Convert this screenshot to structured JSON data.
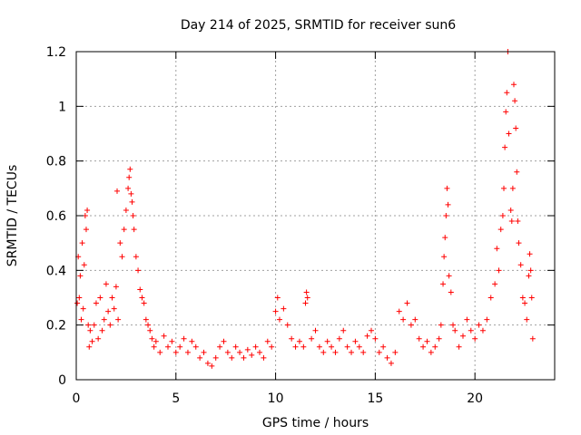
{
  "chart_data": {
    "type": "scatter",
    "title": "Day 214 of 2025, SRMTID for receiver sun6",
    "xlabel": "GPS time / hours",
    "ylabel": "SRMTID / TECUs",
    "xlim": [
      0,
      24
    ],
    "ylim": [
      0,
      1.2
    ],
    "xticks": [
      0,
      5,
      10,
      15,
      20
    ],
    "xtick_labels": [
      "0",
      "5",
      "10",
      "15",
      "20"
    ],
    "yticks": [
      0,
      0.2,
      0.4,
      0.6,
      0.8,
      1.0,
      1.2
    ],
    "ytick_labels": [
      "0",
      "0.2",
      "0.4",
      "0.6",
      "0.8",
      "1",
      "1.2"
    ],
    "grid": true,
    "marker": "+",
    "color": "#ff0000",
    "series": [
      {
        "name": "SRMTID",
        "points": [
          [
            0.05,
            0.28
          ],
          [
            0.1,
            0.45
          ],
          [
            0.15,
            0.3
          ],
          [
            0.2,
            0.38
          ],
          [
            0.25,
            0.22
          ],
          [
            0.3,
            0.5
          ],
          [
            0.35,
            0.26
          ],
          [
            0.4,
            0.42
          ],
          [
            0.45,
            0.6
          ],
          [
            0.5,
            0.55
          ],
          [
            0.55,
            0.62
          ],
          [
            0.6,
            0.2
          ],
          [
            0.65,
            0.12
          ],
          [
            0.7,
            0.18
          ],
          [
            0.8,
            0.14
          ],
          [
            0.9,
            0.2
          ],
          [
            1.0,
            0.28
          ],
          [
            1.1,
            0.15
          ],
          [
            1.2,
            0.3
          ],
          [
            1.3,
            0.18
          ],
          [
            1.4,
            0.22
          ],
          [
            1.5,
            0.35
          ],
          [
            1.6,
            0.25
          ],
          [
            1.7,
            0.2
          ],
          [
            1.8,
            0.3
          ],
          [
            1.9,
            0.26
          ],
          [
            2.0,
            0.34
          ],
          [
            2.05,
            0.69
          ],
          [
            2.1,
            0.22
          ],
          [
            2.2,
            0.5
          ],
          [
            2.3,
            0.45
          ],
          [
            2.4,
            0.55
          ],
          [
            2.5,
            0.62
          ],
          [
            2.6,
            0.7
          ],
          [
            2.65,
            0.74
          ],
          [
            2.7,
            0.77
          ],
          [
            2.75,
            0.68
          ],
          [
            2.8,
            0.65
          ],
          [
            2.85,
            0.6
          ],
          [
            2.9,
            0.55
          ],
          [
            3.0,
            0.45
          ],
          [
            3.1,
            0.4
          ],
          [
            3.2,
            0.33
          ],
          [
            3.3,
            0.3
          ],
          [
            3.4,
            0.28
          ],
          [
            3.5,
            0.22
          ],
          [
            3.6,
            0.2
          ],
          [
            3.7,
            0.18
          ],
          [
            3.8,
            0.15
          ],
          [
            3.9,
            0.12
          ],
          [
            4.0,
            0.14
          ],
          [
            4.2,
            0.1
          ],
          [
            4.4,
            0.16
          ],
          [
            4.6,
            0.12
          ],
          [
            4.8,
            0.14
          ],
          [
            5.0,
            0.1
          ],
          [
            5.2,
            0.12
          ],
          [
            5.4,
            0.15
          ],
          [
            5.6,
            0.1
          ],
          [
            5.8,
            0.14
          ],
          [
            6.0,
            0.12
          ],
          [
            6.2,
            0.08
          ],
          [
            6.4,
            0.1
          ],
          [
            6.6,
            0.06
          ],
          [
            6.8,
            0.05
          ],
          [
            7.0,
            0.08
          ],
          [
            7.2,
            0.12
          ],
          [
            7.4,
            0.14
          ],
          [
            7.6,
            0.1
          ],
          [
            7.8,
            0.08
          ],
          [
            8.0,
            0.12
          ],
          [
            8.2,
            0.1
          ],
          [
            8.4,
            0.08
          ],
          [
            8.6,
            0.11
          ],
          [
            8.8,
            0.09
          ],
          [
            9.0,
            0.12
          ],
          [
            9.2,
            0.1
          ],
          [
            9.4,
            0.08
          ],
          [
            9.6,
            0.14
          ],
          [
            9.8,
            0.12
          ],
          [
            10.0,
            0.25
          ],
          [
            10.1,
            0.3
          ],
          [
            10.2,
            0.22
          ],
          [
            10.4,
            0.26
          ],
          [
            10.6,
            0.2
          ],
          [
            10.8,
            0.15
          ],
          [
            11.0,
            0.12
          ],
          [
            11.2,
            0.14
          ],
          [
            11.4,
            0.12
          ],
          [
            11.5,
            0.28
          ],
          [
            11.55,
            0.32
          ],
          [
            11.6,
            0.3
          ],
          [
            11.8,
            0.15
          ],
          [
            12.0,
            0.18
          ],
          [
            12.2,
            0.12
          ],
          [
            12.4,
            0.1
          ],
          [
            12.6,
            0.14
          ],
          [
            12.8,
            0.12
          ],
          [
            13.0,
            0.1
          ],
          [
            13.2,
            0.15
          ],
          [
            13.4,
            0.18
          ],
          [
            13.6,
            0.12
          ],
          [
            13.8,
            0.1
          ],
          [
            14.0,
            0.14
          ],
          [
            14.2,
            0.12
          ],
          [
            14.4,
            0.1
          ],
          [
            14.6,
            0.16
          ],
          [
            14.8,
            0.18
          ],
          [
            15.0,
            0.15
          ],
          [
            15.2,
            0.1
          ],
          [
            15.4,
            0.12
          ],
          [
            15.6,
            0.08
          ],
          [
            15.8,
            0.06
          ],
          [
            16.0,
            0.1
          ],
          [
            16.2,
            0.25
          ],
          [
            16.4,
            0.22
          ],
          [
            16.6,
            0.28
          ],
          [
            16.8,
            0.2
          ],
          [
            17.0,
            0.22
          ],
          [
            17.2,
            0.15
          ],
          [
            17.4,
            0.12
          ],
          [
            17.6,
            0.14
          ],
          [
            17.8,
            0.1
          ],
          [
            18.0,
            0.12
          ],
          [
            18.2,
            0.15
          ],
          [
            18.3,
            0.2
          ],
          [
            18.4,
            0.35
          ],
          [
            18.45,
            0.45
          ],
          [
            18.5,
            0.52
          ],
          [
            18.55,
            0.6
          ],
          [
            18.6,
            0.7
          ],
          [
            18.65,
            0.64
          ],
          [
            18.7,
            0.38
          ],
          [
            18.8,
            0.32
          ],
          [
            18.9,
            0.2
          ],
          [
            19.0,
            0.18
          ],
          [
            19.2,
            0.12
          ],
          [
            19.4,
            0.16
          ],
          [
            19.6,
            0.22
          ],
          [
            19.8,
            0.18
          ],
          [
            20.0,
            0.15
          ],
          [
            20.2,
            0.2
          ],
          [
            20.4,
            0.18
          ],
          [
            20.6,
            0.22
          ],
          [
            20.8,
            0.3
          ],
          [
            21.0,
            0.35
          ],
          [
            21.1,
            0.48
          ],
          [
            21.2,
            0.4
          ],
          [
            21.3,
            0.55
          ],
          [
            21.4,
            0.6
          ],
          [
            21.45,
            0.7
          ],
          [
            21.5,
            0.85
          ],
          [
            21.55,
            0.98
          ],
          [
            21.6,
            1.05
          ],
          [
            21.65,
            1.2
          ],
          [
            21.7,
            0.9
          ],
          [
            21.8,
            0.62
          ],
          [
            21.85,
            0.58
          ],
          [
            21.9,
            0.7
          ],
          [
            21.95,
            1.08
          ],
          [
            22.0,
            1.02
          ],
          [
            22.05,
            0.92
          ],
          [
            22.1,
            0.76
          ],
          [
            22.15,
            0.58
          ],
          [
            22.2,
            0.5
          ],
          [
            22.3,
            0.42
          ],
          [
            22.4,
            0.3
          ],
          [
            22.5,
            0.28
          ],
          [
            22.6,
            0.22
          ],
          [
            22.7,
            0.38
          ],
          [
            22.75,
            0.46
          ],
          [
            22.8,
            0.4
          ],
          [
            22.85,
            0.3
          ],
          [
            22.9,
            0.15
          ]
        ]
      }
    ]
  }
}
